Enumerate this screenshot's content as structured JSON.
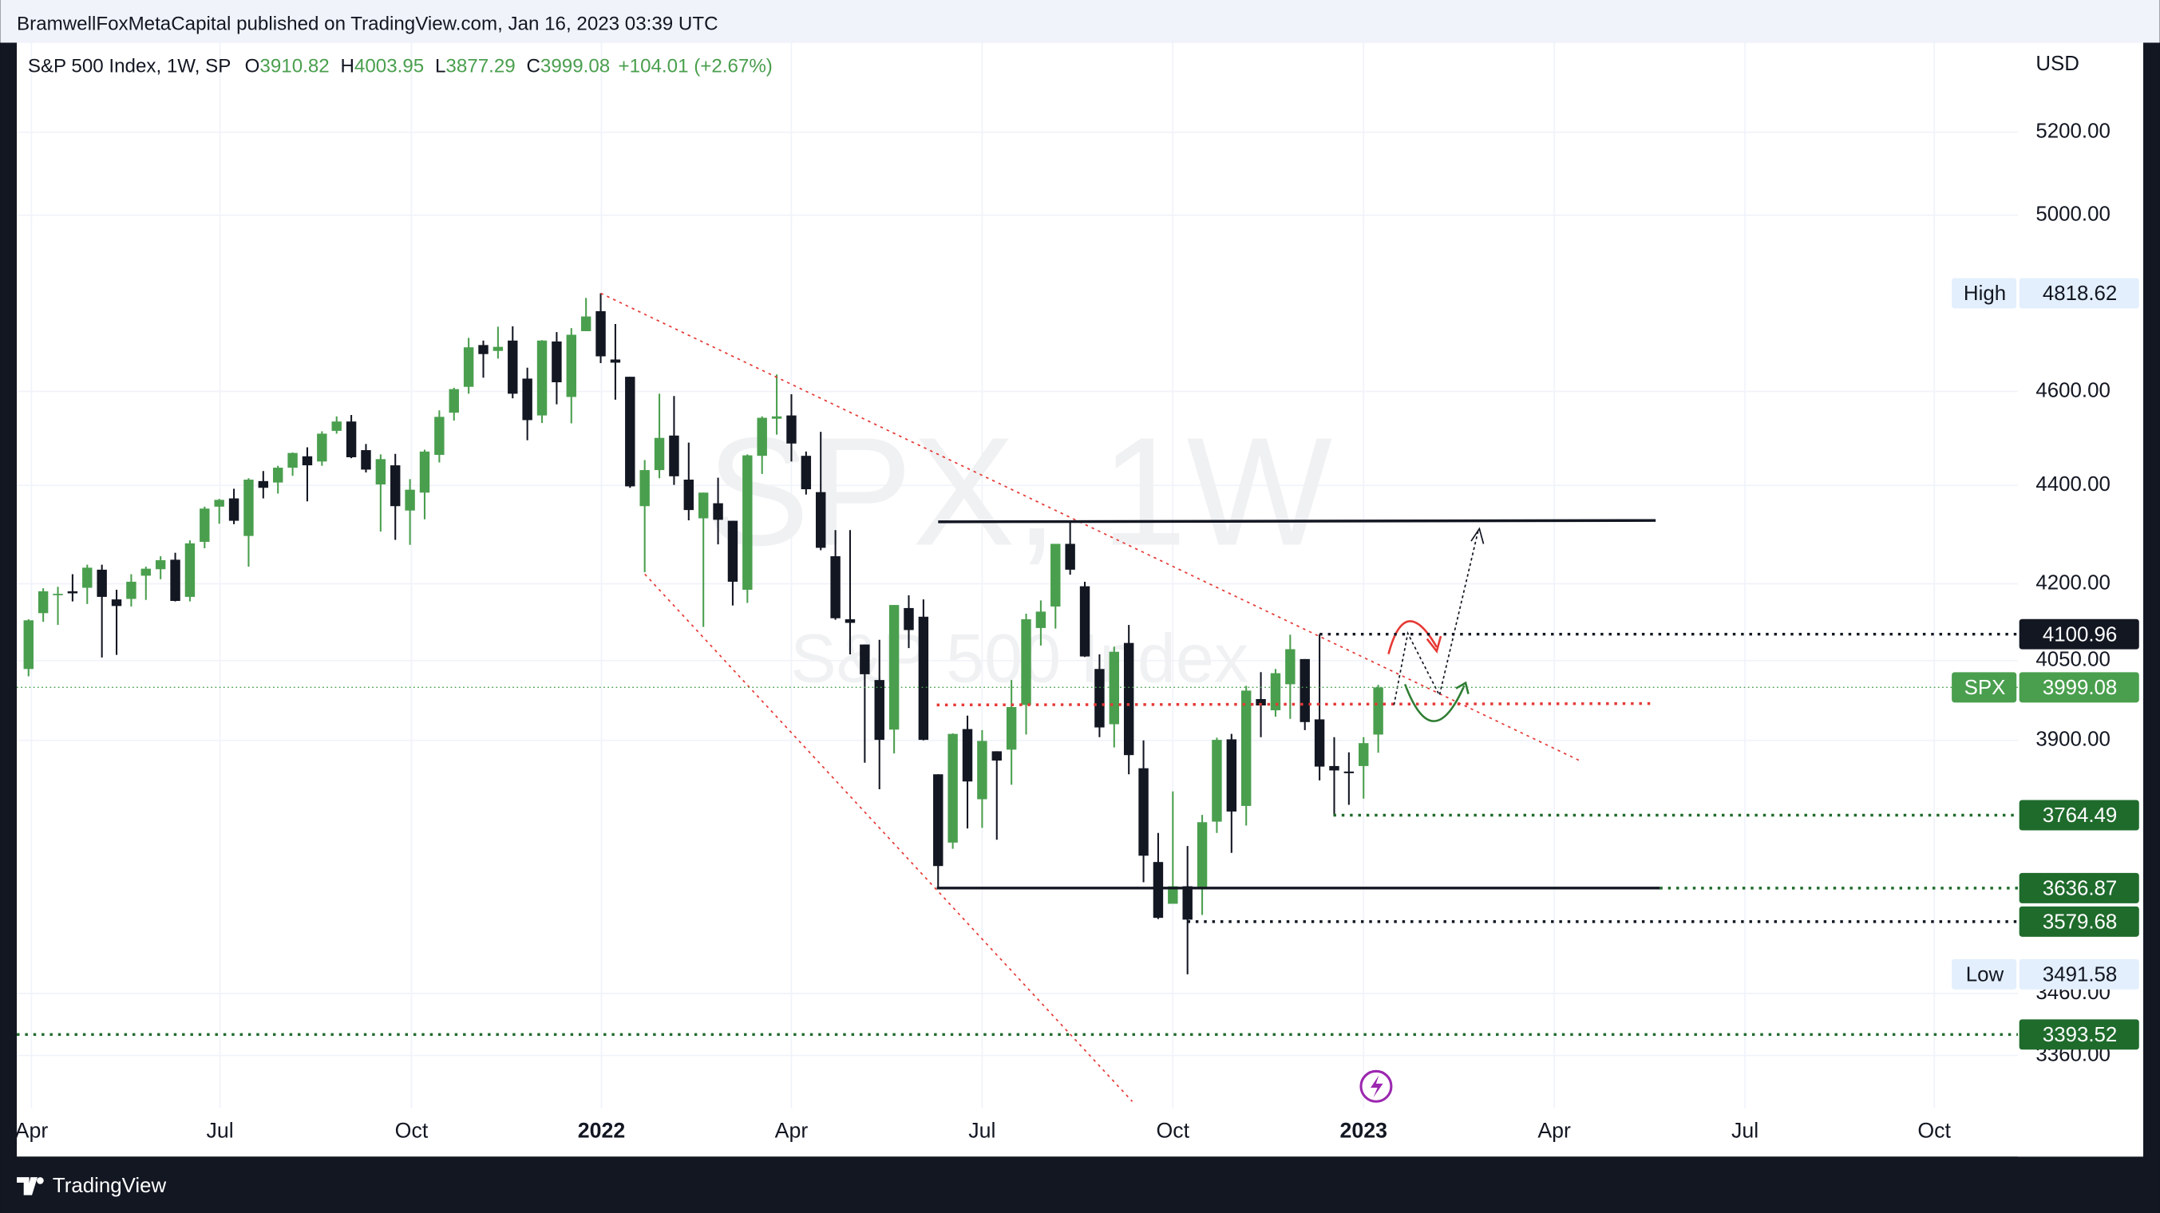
{
  "header": {
    "publisher": "BramwellFoxMetaCapital published on TradingView.com, Jan 16, 2023 03:39 UTC"
  },
  "footer": {
    "brand": "TradingView"
  },
  "chart_data": {
    "type": "candlestick",
    "title": "S&P 500 Index, 1W, SP",
    "watermark": {
      "symbol": "SPX, 1W",
      "name": "S&P 500 Index"
    },
    "currency": "USD",
    "ohlc_labels": [
      "O",
      "H",
      "L",
      "C"
    ],
    "change": "+104.01 (+2.67%)",
    "up_color": "#4a9f4e",
    "down_color": "#131722",
    "log_scale": true,
    "grid": true,
    "open": [
      4034,
      4142,
      4180,
      4185,
      4192,
      4228,
      4169,
      4170,
      4216,
      4229,
      4248,
      4174,
      4284,
      4356,
      4373,
      4296,
      4409,
      4406,
      4437,
      4461,
      4450,
      4515,
      4535,
      4474,
      4402,
      4442,
      4348,
      4385,
      4464,
      4554,
      4610,
      4702,
      4689,
      4712,
      4628,
      4548,
      4710,
      4588,
      4733,
      4778,
      4670,
      4632,
      4357,
      4432,
      4505,
      4412,
      4332,
      4363,
      4327,
      4188,
      4462,
      4541,
      4548,
      4462,
      4386,
      4255,
      4130,
      4081,
      4013,
      3920,
      4152,
      4135,
      3838,
      3716,
      3921,
      3793,
      3880,
      3883,
      3966,
      4113,
      4155,
      4280,
      4195,
      4034,
      3930,
      4084,
      3849,
      3682,
      3610,
      3640,
      3638,
      3753,
      3902,
      3781,
      3977,
      3956,
      4005,
      4053,
      3939,
      3853,
      3843,
      3853,
      3910.82
    ],
    "high": [
      4130,
      4191,
      4194,
      4219,
      4238,
      4238,
      4188,
      4219,
      4234,
      4255,
      4262,
      4287,
      4356,
      4372,
      4393,
      4415,
      4430,
      4441,
      4469,
      4480,
      4514,
      4546,
      4549,
      4487,
      4465,
      4466,
      4413,
      4475,
      4559,
      4608,
      4718,
      4712,
      4743,
      4744,
      4652,
      4713,
      4731,
      4740,
      4808,
      4818.62,
      4749,
      4632,
      4453,
      4595,
      4590,
      4490,
      4385,
      4416,
      4327,
      4465,
      4546,
      4637,
      4594,
      4471,
      4513,
      4308,
      4308,
      4081,
      4090,
      4158,
      4177,
      4169,
      3838,
      3913,
      3946,
      3919,
      3880,
      4013,
      4141,
      4167,
      4280,
      4325,
      4204,
      4062,
      4077,
      4119,
      3900,
      3733,
      3807,
      3710,
      3765,
      3905,
      3912,
      4002,
      4028,
      4034,
      4100,
      4053,
      4100.96,
      3906,
      3878,
      3906,
      4003.95
    ],
    "low": [
      4020,
      4125,
      4119,
      4165,
      4160,
      4056,
      4061,
      4155,
      4168,
      4209,
      4165,
      4165,
      4271,
      4321,
      4320,
      4234,
      4373,
      4383,
      4420,
      4367,
      4441,
      4509,
      4457,
      4427,
      4305,
      4288,
      4278,
      4330,
      4448,
      4537,
      4595,
      4630,
      4672,
      4585,
      4495,
      4532,
      4572,
      4531,
      4733,
      4662,
      4582,
      4395,
      4223,
      4415,
      4401,
      4328,
      4115,
      4279,
      4157,
      4162,
      4424,
      4507,
      4450,
      4381,
      4267,
      4129,
      4062,
      3859,
      3811,
      3876,
      4074,
      3900,
      3636.87,
      3705,
      3741,
      3742,
      3721,
      3819,
      3911,
      4079,
      4112,
      4218,
      4057,
      3906,
      3887,
      3838,
      3647,
      3584,
      3610,
      3491.58,
      3591,
      3733,
      3698,
      3746,
      3906,
      3944,
      3940,
      3919,
      3827,
      3764.49,
      3783,
      3794,
      3877.29
    ],
    "close": [
      4128,
      4185,
      4180,
      4181,
      4232,
      4174,
      4156,
      4204,
      4230,
      4247,
      4166,
      4281,
      4352,
      4370,
      4327,
      4412,
      4395,
      4437,
      4468,
      4442,
      4509,
      4535,
      4459,
      4433,
      4455,
      4357,
      4391,
      4471,
      4545,
      4605,
      4697,
      4682,
      4698,
      4595,
      4538,
      4712,
      4620,
      4725,
      4766,
      4677,
      4663,
      4398,
      4432,
      4500,
      4419,
      4349,
      4385,
      4329,
      4204,
      4463,
      4543,
      4546,
      4488,
      4392,
      4272,
      4132,
      4123,
      4024,
      3901,
      4158,
      4109,
      3901,
      3675,
      3912,
      3825,
      3899,
      3863,
      3962,
      4130,
      4145,
      4280,
      4228,
      4058,
      3924,
      4067,
      3873,
      3693,
      3586,
      3640,
      3583,
      3752,
      3901,
      3771,
      3993,
      3965,
      4026,
      4072,
      3934,
      3852,
      3845,
      3840,
      3895,
      3999.08
    ],
    "tag_labels": {
      "high": "High",
      "low": "Low",
      "symbol": "SPX"
    },
    "levels": [
      3579.68,
      3393.52
    ],
    "ylim": [
      3277,
      5425
    ],
    "yticks": [
      {
        "value": 5200,
        "label": "5200.00"
      },
      {
        "value": 5000,
        "label": "5000.00"
      },
      {
        "value": 4600,
        "label": "4600.00"
      },
      {
        "value": 4400,
        "label": "4400.00"
      },
      {
        "value": 4200,
        "label": "4200.00"
      },
      {
        "value": 4050,
        "label": "4050.00"
      },
      {
        "value": 3900,
        "label": "3900.00"
      },
      {
        "value": 3460,
        "label": "3460.00"
      },
      {
        "value": 3360,
        "label": "3360.00"
      }
    ],
    "xlim": [
      -0.8,
      135.6
    ],
    "xticks": [
      {
        "value": 0.2,
        "label": "Apr"
      },
      {
        "value": 13.05,
        "label": "Jul"
      },
      {
        "value": 26.1,
        "label": "Oct"
      },
      {
        "value": 39.05,
        "label": "2022"
      },
      {
        "value": 52,
        "label": "Apr"
      },
      {
        "value": 65,
        "label": "Jul"
      },
      {
        "value": 78,
        "label": "Oct"
      },
      {
        "value": 91,
        "label": "2023"
      },
      {
        "value": 104,
        "label": "Apr"
      },
      {
        "value": 117,
        "label": "Jul"
      },
      {
        "value": 129.9,
        "label": "Oct"
      }
    ]
  }
}
